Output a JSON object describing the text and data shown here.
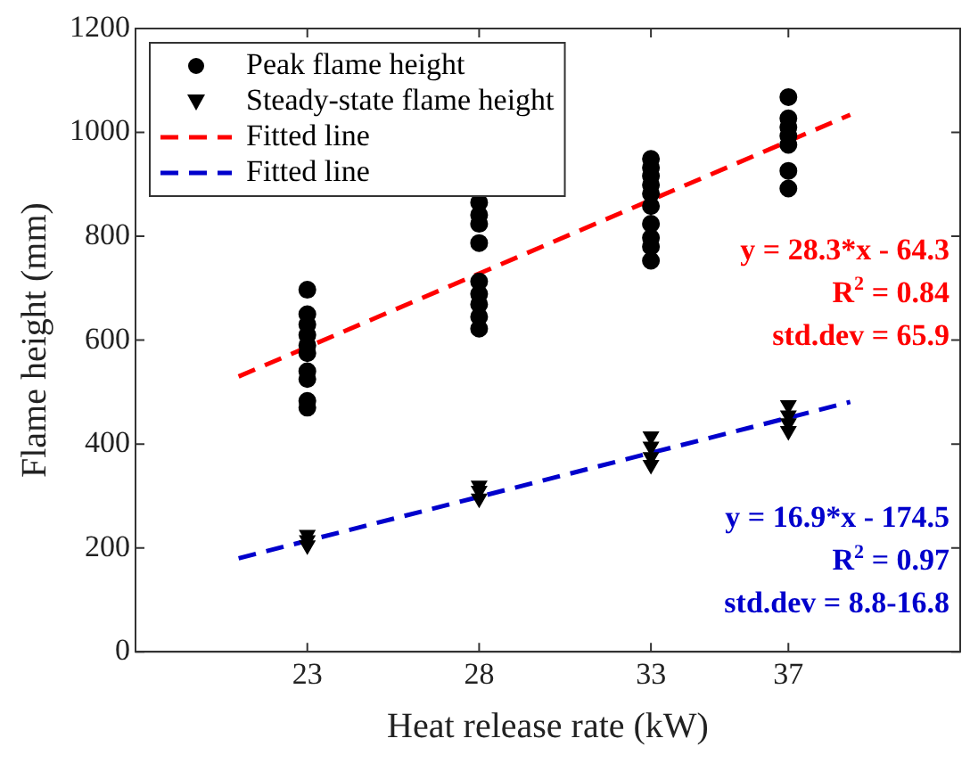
{
  "chart_data": {
    "type": "scatter",
    "xlabel": "Heat release rate (kW)",
    "ylabel": "Flame height (mm)",
    "xlim": [
      18,
      42
    ],
    "xticks": [
      23,
      28,
      33,
      37
    ],
    "ylim": [
      0,
      1200
    ],
    "yticks": [
      0,
      200,
      400,
      600,
      800,
      1000,
      1200
    ],
    "grid": false,
    "legend": "top left",
    "series": [
      {
        "name": "Peak flame height",
        "marker": "circle",
        "color": "#000000",
        "x": [
          23,
          23,
          23,
          23,
          23,
          23,
          23,
          23,
          23,
          23,
          28,
          28,
          28,
          28,
          28,
          28,
          28,
          28,
          28,
          33,
          33,
          33,
          33,
          33,
          33,
          33,
          33,
          33,
          33,
          37,
          37,
          37,
          37,
          37,
          37,
          37
        ],
        "values": [
          697,
          650,
          630,
          610,
          590,
          575,
          540,
          525,
          483,
          470,
          865,
          841,
          824,
          787,
          713,
          689,
          669,
          645,
          622,
          949,
          932,
          916,
          899,
          882,
          858,
          824,
          797,
          780,
          753,
          1068,
          1027,
          1010,
          993,
          976,
          926,
          892
        ]
      },
      {
        "name": "Steady-state flame height",
        "marker": "triangle",
        "color": "#000000",
        "x": [
          23,
          23,
          23,
          28,
          28,
          28,
          33,
          33,
          33,
          33,
          37,
          37,
          37,
          37
        ],
        "values": [
          225,
          215,
          205,
          320,
          310,
          295,
          415,
          395,
          375,
          360,
          475,
          455,
          440,
          425
        ]
      },
      {
        "name": "Fitted line",
        "type": "line",
        "line_style": "dashed",
        "marker": "none",
        "color": "#ff0000",
        "x": [
          21,
          38.8
        ],
        "values": [
          530,
          1034
        ]
      },
      {
        "name": "Fitted line",
        "type": "line",
        "line_style": "dashed",
        "marker": "none",
        "color": "#0000cc",
        "x": [
          21,
          38.8
        ],
        "values": [
          180,
          481
        ]
      }
    ],
    "annotations": [
      "y = 28.3*x - 64.3",
      "R$^{2}$ = 0.84",
      "std.dev = 65.9",
      "y = 16.9*x - 174.5",
      "R$^{2}$ = 0.97",
      "std.dev = 8.8-16.8"
    ]
  }
}
